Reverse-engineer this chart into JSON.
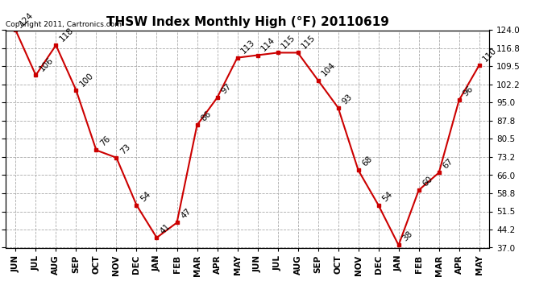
{
  "title": "THSW Index Monthly High (°F) 20110619",
  "copyright": "Copyright 2011, Cartronics.com",
  "months": [
    "JUN",
    "JUL",
    "AUG",
    "SEP",
    "OCT",
    "NOV",
    "DEC",
    "JAN",
    "FEB",
    "MAR",
    "APR",
    "MAY",
    "JUN",
    "JUL",
    "AUG",
    "SEP",
    "OCT",
    "NOV",
    "DEC",
    "JAN",
    "FEB",
    "MAR",
    "APR",
    "MAY"
  ],
  "values": [
    124,
    106,
    118,
    100,
    76,
    73,
    54,
    41,
    47,
    86,
    97,
    113,
    114,
    115,
    115,
    104,
    93,
    68,
    54,
    38,
    60,
    67,
    96,
    110
  ],
  "line_color": "#cc0000",
  "marker_color": "#cc0000",
  "bg_color": "#ffffff",
  "grid_color": "#aaaaaa",
  "ylim_min": 37.0,
  "ylim_max": 124.0,
  "yticks": [
    37.0,
    44.2,
    51.5,
    58.8,
    66.0,
    73.2,
    80.5,
    87.8,
    95.0,
    102.2,
    109.5,
    116.8,
    124.0
  ],
  "title_fontsize": 11,
  "label_fontsize": 7.5,
  "tick_fontsize": 7.5
}
